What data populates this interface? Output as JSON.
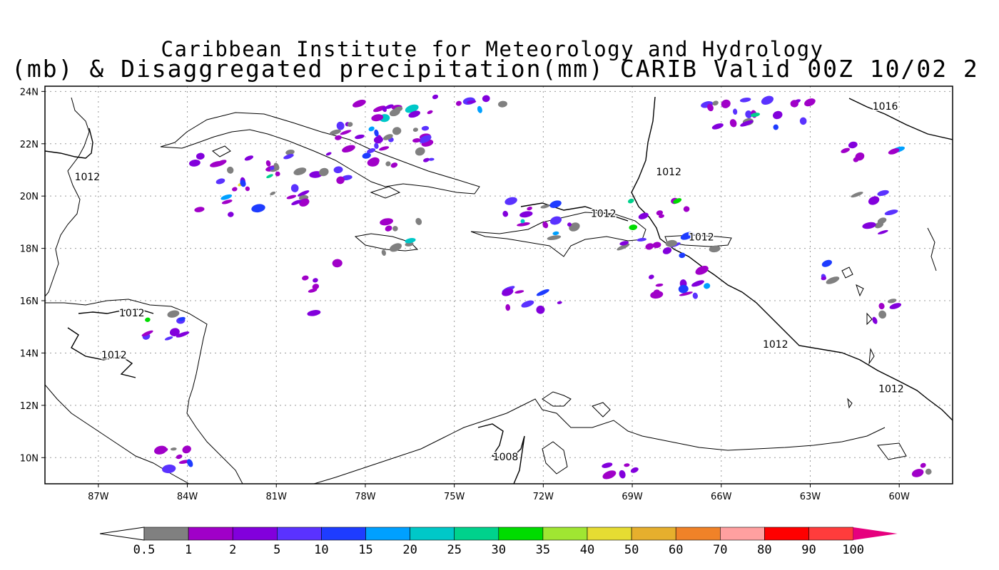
{
  "title": {
    "line1": "Caribbean Institute for Meteorology and Hydrology",
    "line2": "(mb) & Disaggregated precipitation(mm) CARIB Valid 00Z 10/02 2"
  },
  "map": {
    "lat_labels": [
      "24N",
      "22N",
      "20N",
      "18N",
      "16N",
      "14N",
      "12N",
      "10N"
    ],
    "lat_values": [
      24,
      22,
      20,
      18,
      16,
      14,
      12,
      10
    ],
    "lon_labels": [
      "87W",
      "84W",
      "81W",
      "78W",
      "75W",
      "72W",
      "69W",
      "66W",
      "63W",
      "60W"
    ],
    "lon_values": [
      -87,
      -84,
      -81,
      -78,
      -75,
      -72,
      -69,
      -66,
      -63,
      -60
    ],
    "lon_range": [
      -88.8,
      -58.2
    ],
    "lat_range": [
      9.0,
      24.2
    ],
    "isobar_labels": [
      {
        "text": "1016",
        "lon": -60.9,
        "lat": 23.3
      },
      {
        "text": "1012",
        "lon": -87.8,
        "lat": 20.6
      },
      {
        "text": "1012",
        "lon": -68.2,
        "lat": 20.8
      },
      {
        "text": "1012",
        "lon": -70.4,
        "lat": 19.2
      },
      {
        "text": "1012",
        "lon": -67.1,
        "lat": 18.3
      },
      {
        "text": "1012",
        "lon": -86.3,
        "lat": 15.4
      },
      {
        "text": "1012",
        "lon": -86.9,
        "lat": 13.8
      },
      {
        "text": "1012",
        "lon": -64.6,
        "lat": 14.2
      },
      {
        "text": "1012",
        "lon": -60.7,
        "lat": 12.5
      },
      {
        "text": "1008",
        "lon": -73.7,
        "lat": 9.9
      }
    ]
  },
  "colorbar": {
    "labels": [
      "0.5",
      "1",
      "2",
      "5",
      "10",
      "15",
      "20",
      "25",
      "30",
      "35",
      "40",
      "50",
      "60",
      "70",
      "80",
      "90",
      "100"
    ],
    "colors": [
      "#808080",
      "#a000c8",
      "#8200dc",
      "#5a32ff",
      "#1e3cff",
      "#00a0ff",
      "#00c8c8",
      "#00d28c",
      "#00dc00",
      "#a0e632",
      "#e6dc32",
      "#e6af2d",
      "#f08228",
      "#ffa0a0",
      "#ff0000",
      "#ff3c3c"
    ],
    "tip_color": "#e6007e"
  }
}
